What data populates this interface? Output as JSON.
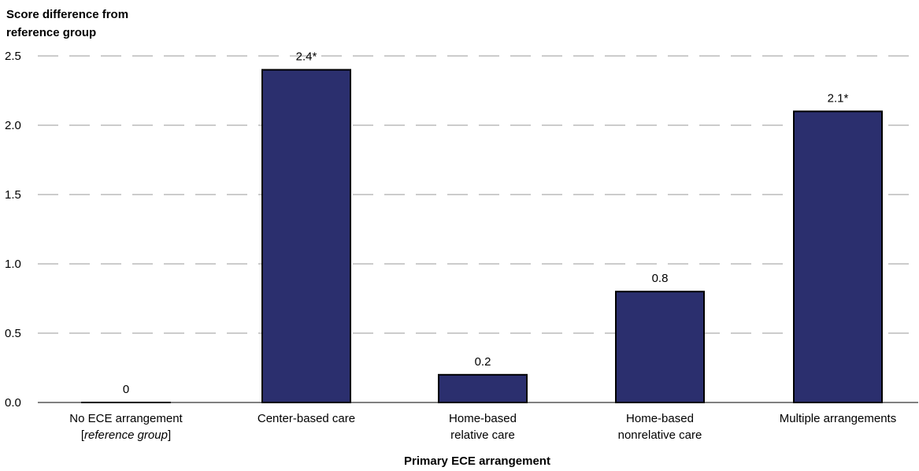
{
  "chart_data": {
    "type": "bar",
    "ylabel": [
      "Score difference from",
      "reference group"
    ],
    "xlabel": "Primary ECE arrangement",
    "ylim": [
      0,
      2.5
    ],
    "yticks": [
      "0.0",
      "0.5",
      "1.0",
      "1.5",
      "2.0",
      "2.5"
    ],
    "grid": true,
    "categories": [
      {
        "line1": "No ECE arrangement",
        "line2_pre": "[",
        "line2_italic": "reference group",
        "line2_post": "]"
      },
      {
        "line1": "Center-based care",
        "line2_pre": "",
        "line2_italic": "",
        "line2_post": ""
      },
      {
        "line1": "Home-based",
        "line2_pre": "relative care",
        "line2_italic": "",
        "line2_post": ""
      },
      {
        "line1": "Home-based",
        "line2_pre": "nonrelative care",
        "line2_italic": "",
        "line2_post": ""
      },
      {
        "line1": "Multiple arrangements",
        "line2_pre": "",
        "line2_italic": "",
        "line2_post": ""
      }
    ],
    "values": [
      0,
      2.4,
      0.2,
      0.8,
      2.1
    ],
    "value_labels": [
      "0",
      "2.4*",
      "0.2",
      "0.8",
      "2.1*"
    ],
    "bar_color": "#2b2f6e",
    "grid_color": "#9a9a9a"
  }
}
